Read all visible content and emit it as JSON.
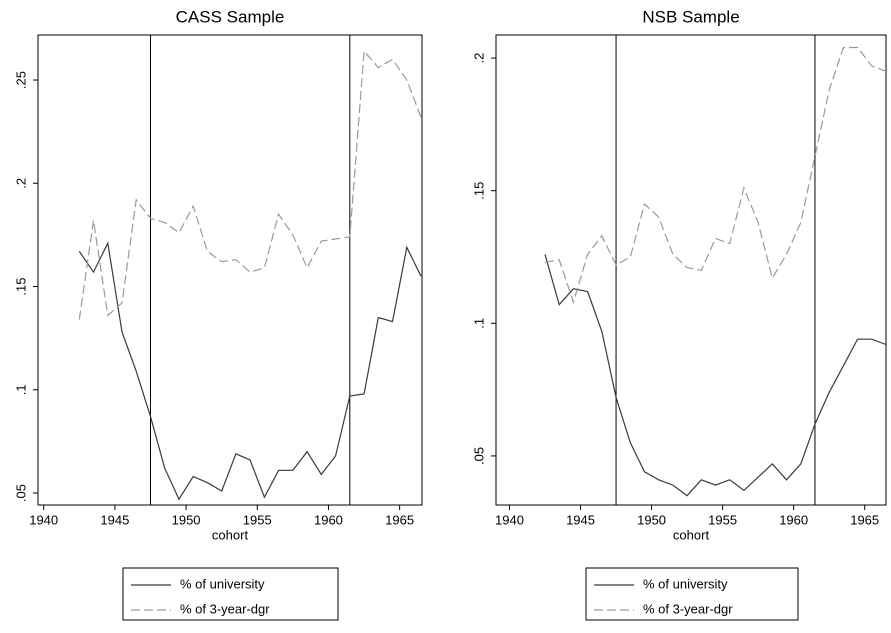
{
  "chart_data": [
    {
      "type": "line",
      "title": "CASS Sample",
      "x_label": "cohort",
      "x": [
        1942.5,
        1943.5,
        1944.5,
        1945.5,
        1946.5,
        1947.5,
        1948.5,
        1949.5,
        1950.5,
        1951.5,
        1952.5,
        1953.5,
        1954.5,
        1955.5,
        1956.5,
        1957.5,
        1958.5,
        1959.5,
        1960.5,
        1961.5,
        1962.5,
        1963.5,
        1964.5,
        1965.5,
        1966.5
      ],
      "series": [
        {
          "name": "% of university",
          "color": "#3a3a3a",
          "dashed": false,
          "values": [
            0.167,
            0.157,
            0.171,
            0.128,
            0.109,
            0.087,
            0.062,
            0.047,
            0.058,
            0.055,
            0.051,
            0.069,
            0.066,
            0.048,
            0.061,
            0.061,
            0.07,
            0.059,
            0.068,
            0.097,
            0.098,
            0.135,
            0.133,
            0.169,
            0.155
          ]
        },
        {
          "name": "% of 3-year-dgr",
          "color": "#9a9a9a",
          "dashed": true,
          "values": [
            0.134,
            0.182,
            0.136,
            0.142,
            0.192,
            0.183,
            0.181,
            0.176,
            0.189,
            0.167,
            0.162,
            0.163,
            0.157,
            0.159,
            0.185,
            0.175,
            0.159,
            0.172,
            0.173,
            0.174,
            0.264,
            0.256,
            0.26,
            0.25,
            0.232
          ]
        }
      ],
      "vlines": [
        1947.5,
        1961.5
      ],
      "xlim": [
        1939.6,
        1966.57
      ],
      "xticks": [
        1940,
        1945,
        1950,
        1955,
        1960,
        1965
      ],
      "ylim": [
        0.0442,
        0.2718
      ],
      "yticks": [
        {
          "value": 0.05,
          "label": ".05"
        },
        {
          "value": 0.1,
          "label": ".1"
        },
        {
          "value": 0.15,
          "label": ".15"
        },
        {
          "value": 0.2,
          "label": ".2"
        },
        {
          "value": 0.25,
          "label": ".25"
        }
      ]
    },
    {
      "type": "line",
      "title": "NSB Sample",
      "x_label": "cohort",
      "x": [
        1942.5,
        1943.5,
        1944.5,
        1945.5,
        1946.5,
        1947.5,
        1948.5,
        1949.5,
        1950.5,
        1951.5,
        1952.5,
        1953.5,
        1954.5,
        1955.5,
        1956.5,
        1957.5,
        1958.5,
        1959.5,
        1960.5,
        1961.5,
        1962.5,
        1963.5,
        1964.5,
        1965.5,
        1966.5
      ],
      "series": [
        {
          "name": "% of university",
          "color": "#3a3a3a",
          "dashed": false,
          "values": [
            0.126,
            0.107,
            0.113,
            0.112,
            0.097,
            0.072,
            0.055,
            0.044,
            0.041,
            0.039,
            0.035,
            0.041,
            0.039,
            0.041,
            0.037,
            0.042,
            0.047,
            0.041,
            0.047,
            0.062,
            0.074,
            0.084,
            0.094,
            0.094,
            0.092
          ]
        },
        {
          "name": "% of 3-year-dgr",
          "color": "#9a9a9a",
          "dashed": true,
          "values": [
            0.123,
            0.124,
            0.108,
            0.126,
            0.133,
            0.122,
            0.125,
            0.145,
            0.14,
            0.126,
            0.121,
            0.12,
            0.132,
            0.13,
            0.151,
            0.138,
            0.117,
            0.126,
            0.138,
            0.163,
            0.188,
            0.204,
            0.204,
            0.197,
            0.195
          ]
        }
      ],
      "vlines": [
        1947.5,
        1961.5
      ],
      "xlim": [
        1939.05,
        1966.5
      ],
      "xticks": [
        1940,
        1945,
        1950,
        1955,
        1960,
        1965
      ],
      "ylim": [
        0.0315,
        0.2087
      ],
      "yticks": [
        {
          "value": 0.05,
          "label": ".05"
        },
        {
          "value": 0.1,
          "label": ".1"
        },
        {
          "value": 0.15,
          "label": ".15"
        },
        {
          "value": 0.2,
          "label": ".2"
        }
      ]
    }
  ]
}
